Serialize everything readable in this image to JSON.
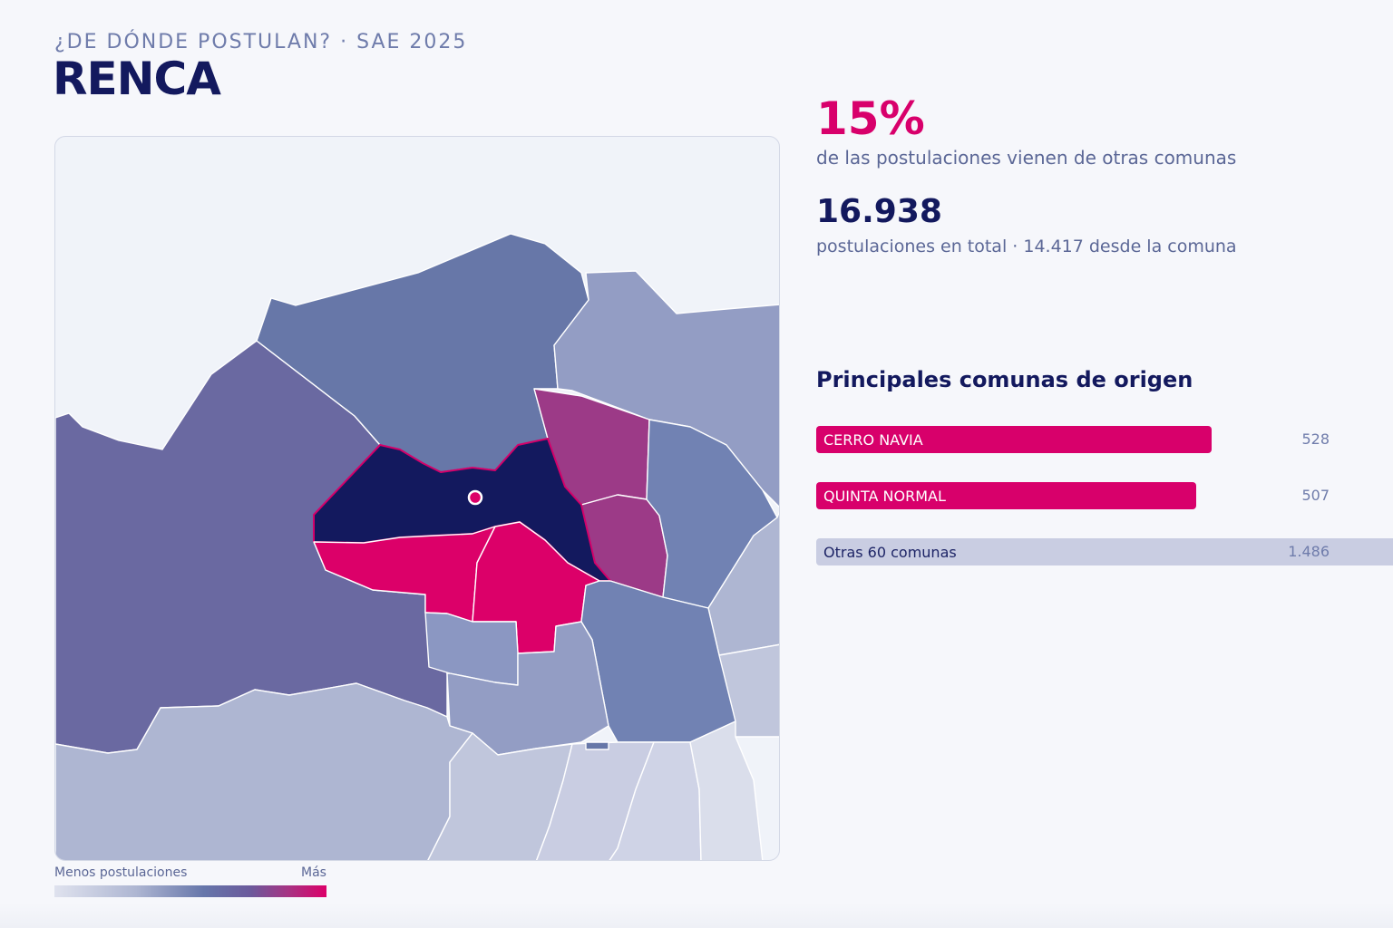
{
  "header": {
    "kicker": "¿DE DÓNDE POSTULAN? · SAE 2025",
    "title": "RENCA"
  },
  "stats": {
    "percent": "15%",
    "percent_desc": "de las postulaciones vienen de otras comunas",
    "total": "16.938",
    "total_desc": "postulaciones en total · 14.417 desde la comuna"
  },
  "origins": {
    "title": "Principales comunas de origen",
    "items": [
      {
        "name": "CERRO NAVIA",
        "value": "528",
        "share": 0.355,
        "color": "#d8006b"
      },
      {
        "name": "QUINTA NORMAL",
        "value": "507",
        "share": 0.341,
        "color": "#d8006b"
      },
      {
        "name": "Otras 60 comunas",
        "value": "1.486",
        "share": 1.0,
        "color": "#c9cde2"
      }
    ]
  },
  "legend": {
    "low_label": "Menos postulaciones",
    "high_label": "Más",
    "colors": [
      "#dfe2ee",
      "#aeb6d2",
      "#6676aa",
      "#6b5a9c",
      "#a73383",
      "#dc0069"
    ]
  },
  "map": {
    "focus_commune_color": "#13195e",
    "highlight_color": "#dc0069",
    "marker_icon": "location-marker-icon"
  }
}
